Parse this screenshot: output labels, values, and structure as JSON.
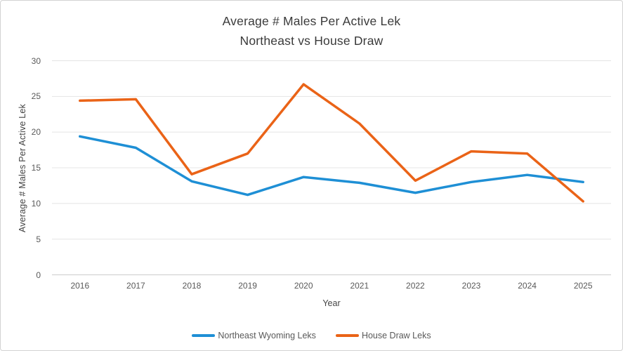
{
  "title": {
    "line1": "Average # Males Per Active Lek",
    "line2": "Northeast vs House Draw"
  },
  "axes": {
    "y_title": "Average # Males Per Active Lek",
    "x_title": "Year",
    "y_ticks": [
      0,
      5,
      10,
      15,
      20,
      25,
      30
    ],
    "x_ticks": [
      "2016",
      "2017",
      "2018",
      "2019",
      "2020",
      "2021",
      "2022",
      "2023",
      "2024",
      "2025"
    ]
  },
  "legend": [
    {
      "label": "Northeast Wyoming Leks",
      "color": "#1e8fd5"
    },
    {
      "label": "House Draw Leks",
      "color": "#ea6317"
    }
  ],
  "colors": {
    "title_text": "#3a3a3a",
    "tick_text": "#595959",
    "gridline": "#e4e4e4",
    "axis_line": "#cccccc",
    "northeast_blue": "#1e8fd5",
    "house_draw_orange": "#ea6317"
  },
  "chart_data": {
    "type": "line",
    "title": "Average # Males Per Active Lek — Northeast vs House Draw",
    "categories": [
      "2016",
      "2017",
      "2018",
      "2019",
      "2020",
      "2021",
      "2022",
      "2023",
      "2024",
      "2025"
    ],
    "series": [
      {
        "name": "Northeast Wyoming Leks",
        "color": "#1e8fd5",
        "values": [
          19.4,
          17.8,
          13.1,
          11.2,
          13.7,
          12.9,
          11.5,
          13.0,
          14.0,
          13.0
        ]
      },
      {
        "name": "House Draw Leks",
        "color": "#ea6317",
        "values": [
          24.4,
          24.6,
          14.1,
          17.0,
          26.7,
          21.2,
          13.2,
          17.3,
          17.0,
          10.3
        ]
      }
    ],
    "xlabel": "Year",
    "ylabel": "Average # Males Per Active Lek",
    "ylim": [
      0,
      30
    ],
    "y_tick_step": 5,
    "grid": "horizontal",
    "legend_position": "bottom"
  }
}
